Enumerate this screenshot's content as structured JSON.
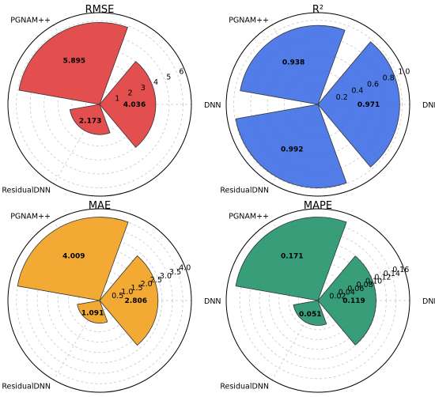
{
  "chart_data": [
    {
      "type": "polar-bar",
      "title": "RMSE",
      "categories": [
        "DNN",
        "PGNAM++",
        "ResidualDNN"
      ],
      "values": [
        4.036,
        5.895,
        2.173
      ],
      "value_labels": [
        "4.036",
        "5.895",
        "2.173"
      ],
      "rmax": 6.6,
      "ticks": [
        1,
        2,
        3,
        4,
        5,
        6
      ],
      "tick_labels": [
        "1",
        "2",
        "3",
        "4",
        "5",
        "6"
      ],
      "color": "#e03c3c"
    },
    {
      "type": "polar-bar",
      "title": "R²",
      "categories": [
        "DNN",
        "PGNAM++",
        "ResidualDNN"
      ],
      "values": [
        0.971,
        0.938,
        0.992
      ],
      "value_labels": [
        "0.971",
        "0.938",
        "0.992"
      ],
      "rmax": 1.09,
      "ticks": [
        0.2,
        0.4,
        0.6,
        0.8,
        1.0
      ],
      "tick_labels": [
        "0.2",
        "0.4",
        "0.6",
        "0.8",
        "1.0"
      ],
      "color": "#3f6fe6"
    },
    {
      "type": "polar-bar",
      "title": "MAE",
      "categories": [
        "DNN",
        "PGNAM++",
        "ResidualDNN"
      ],
      "values": [
        2.806,
        4.009,
        1.091
      ],
      "value_labels": [
        "2.806",
        "4.009",
        "1.091"
      ],
      "rmax": 4.41,
      "ticks": [
        0.5,
        1.0,
        1.5,
        2.0,
        2.5,
        3.0,
        3.5,
        4.0
      ],
      "tick_labels": [
        "0.5",
        "1.0",
        "1.5",
        "2.0",
        "2.5",
        "3.0",
        "3.5",
        "4.0"
      ],
      "color": "#f2a11f"
    },
    {
      "type": "polar-bar",
      "title": "MAPE",
      "categories": [
        "DNN",
        "PGNAM++",
        "ResidualDNN"
      ],
      "values": [
        0.119,
        0.171,
        0.051
      ],
      "value_labels": [
        "0.119",
        "0.171",
        "0.051"
      ],
      "rmax": 0.188,
      "ticks": [
        0.02,
        0.04,
        0.06,
        0.08,
        0.1,
        0.12,
        0.14,
        0.16
      ],
      "tick_labels": [
        "0.02",
        "0.04",
        "0.06",
        "0.08",
        "0.10",
        "0.12",
        "0.14",
        "0.16"
      ],
      "color": "#22936b"
    }
  ]
}
